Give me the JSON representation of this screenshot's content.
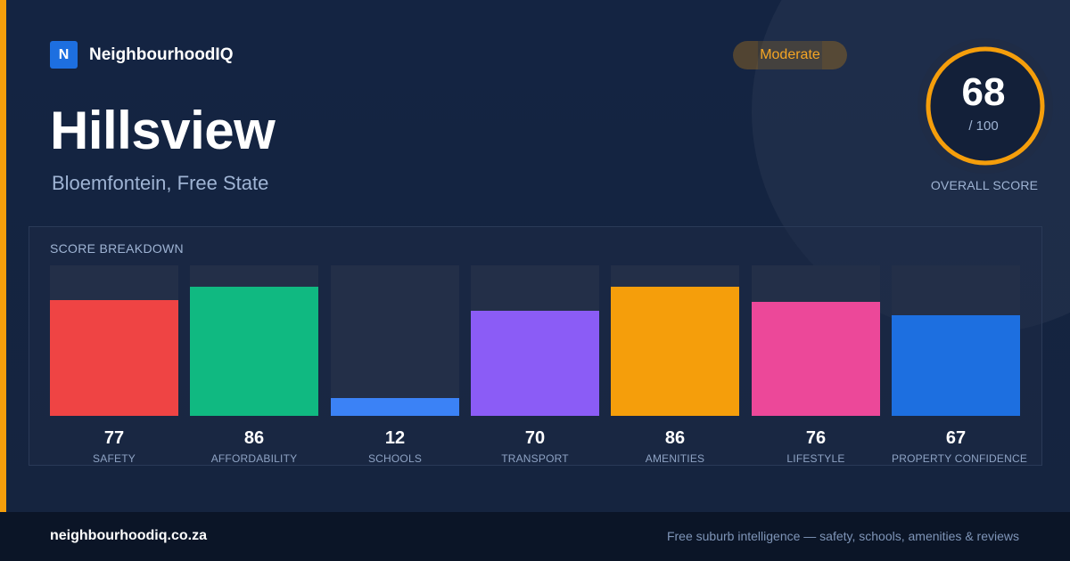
{
  "brand": {
    "logo_letter": "N",
    "name": "NeighbourhoodIQ"
  },
  "suburb": {
    "name": "Hillsview",
    "location": "Bloemfontein, Free State"
  },
  "badge": {
    "label": "Moderate",
    "color": "#f5a524"
  },
  "overall": {
    "score": "68",
    "max": "/ 100",
    "value": 68,
    "label": "OVERALL SCORE",
    "ring_color": "#f59e0b"
  },
  "breakdown": {
    "title": "SCORE BREAKDOWN",
    "metrics": [
      {
        "label": "SAFETY",
        "value": 77,
        "value_text": "77",
        "color": "#ef4444"
      },
      {
        "label": "AFFORDABILITY",
        "value": 86,
        "value_text": "86",
        "color": "#10b981"
      },
      {
        "label": "SCHOOLS",
        "value": 12,
        "value_text": "12",
        "color": "#3b82f6"
      },
      {
        "label": "TRANSPORT",
        "value": 70,
        "value_text": "70",
        "color": "#8b5cf6"
      },
      {
        "label": "AMENITIES",
        "value": 86,
        "value_text": "86",
        "color": "#f59e0b"
      },
      {
        "label": "LIFESTYLE",
        "value": 76,
        "value_text": "76",
        "color": "#ec4899"
      },
      {
        "label": "PROPERTY CONFIDENCE",
        "value": 67,
        "value_text": "67",
        "color": "#1d6fe0"
      }
    ]
  },
  "footer": {
    "url": "neighbourhoodiq.co.za",
    "tagline": "Free suburb intelligence — safety, schools, amenities & reviews"
  }
}
